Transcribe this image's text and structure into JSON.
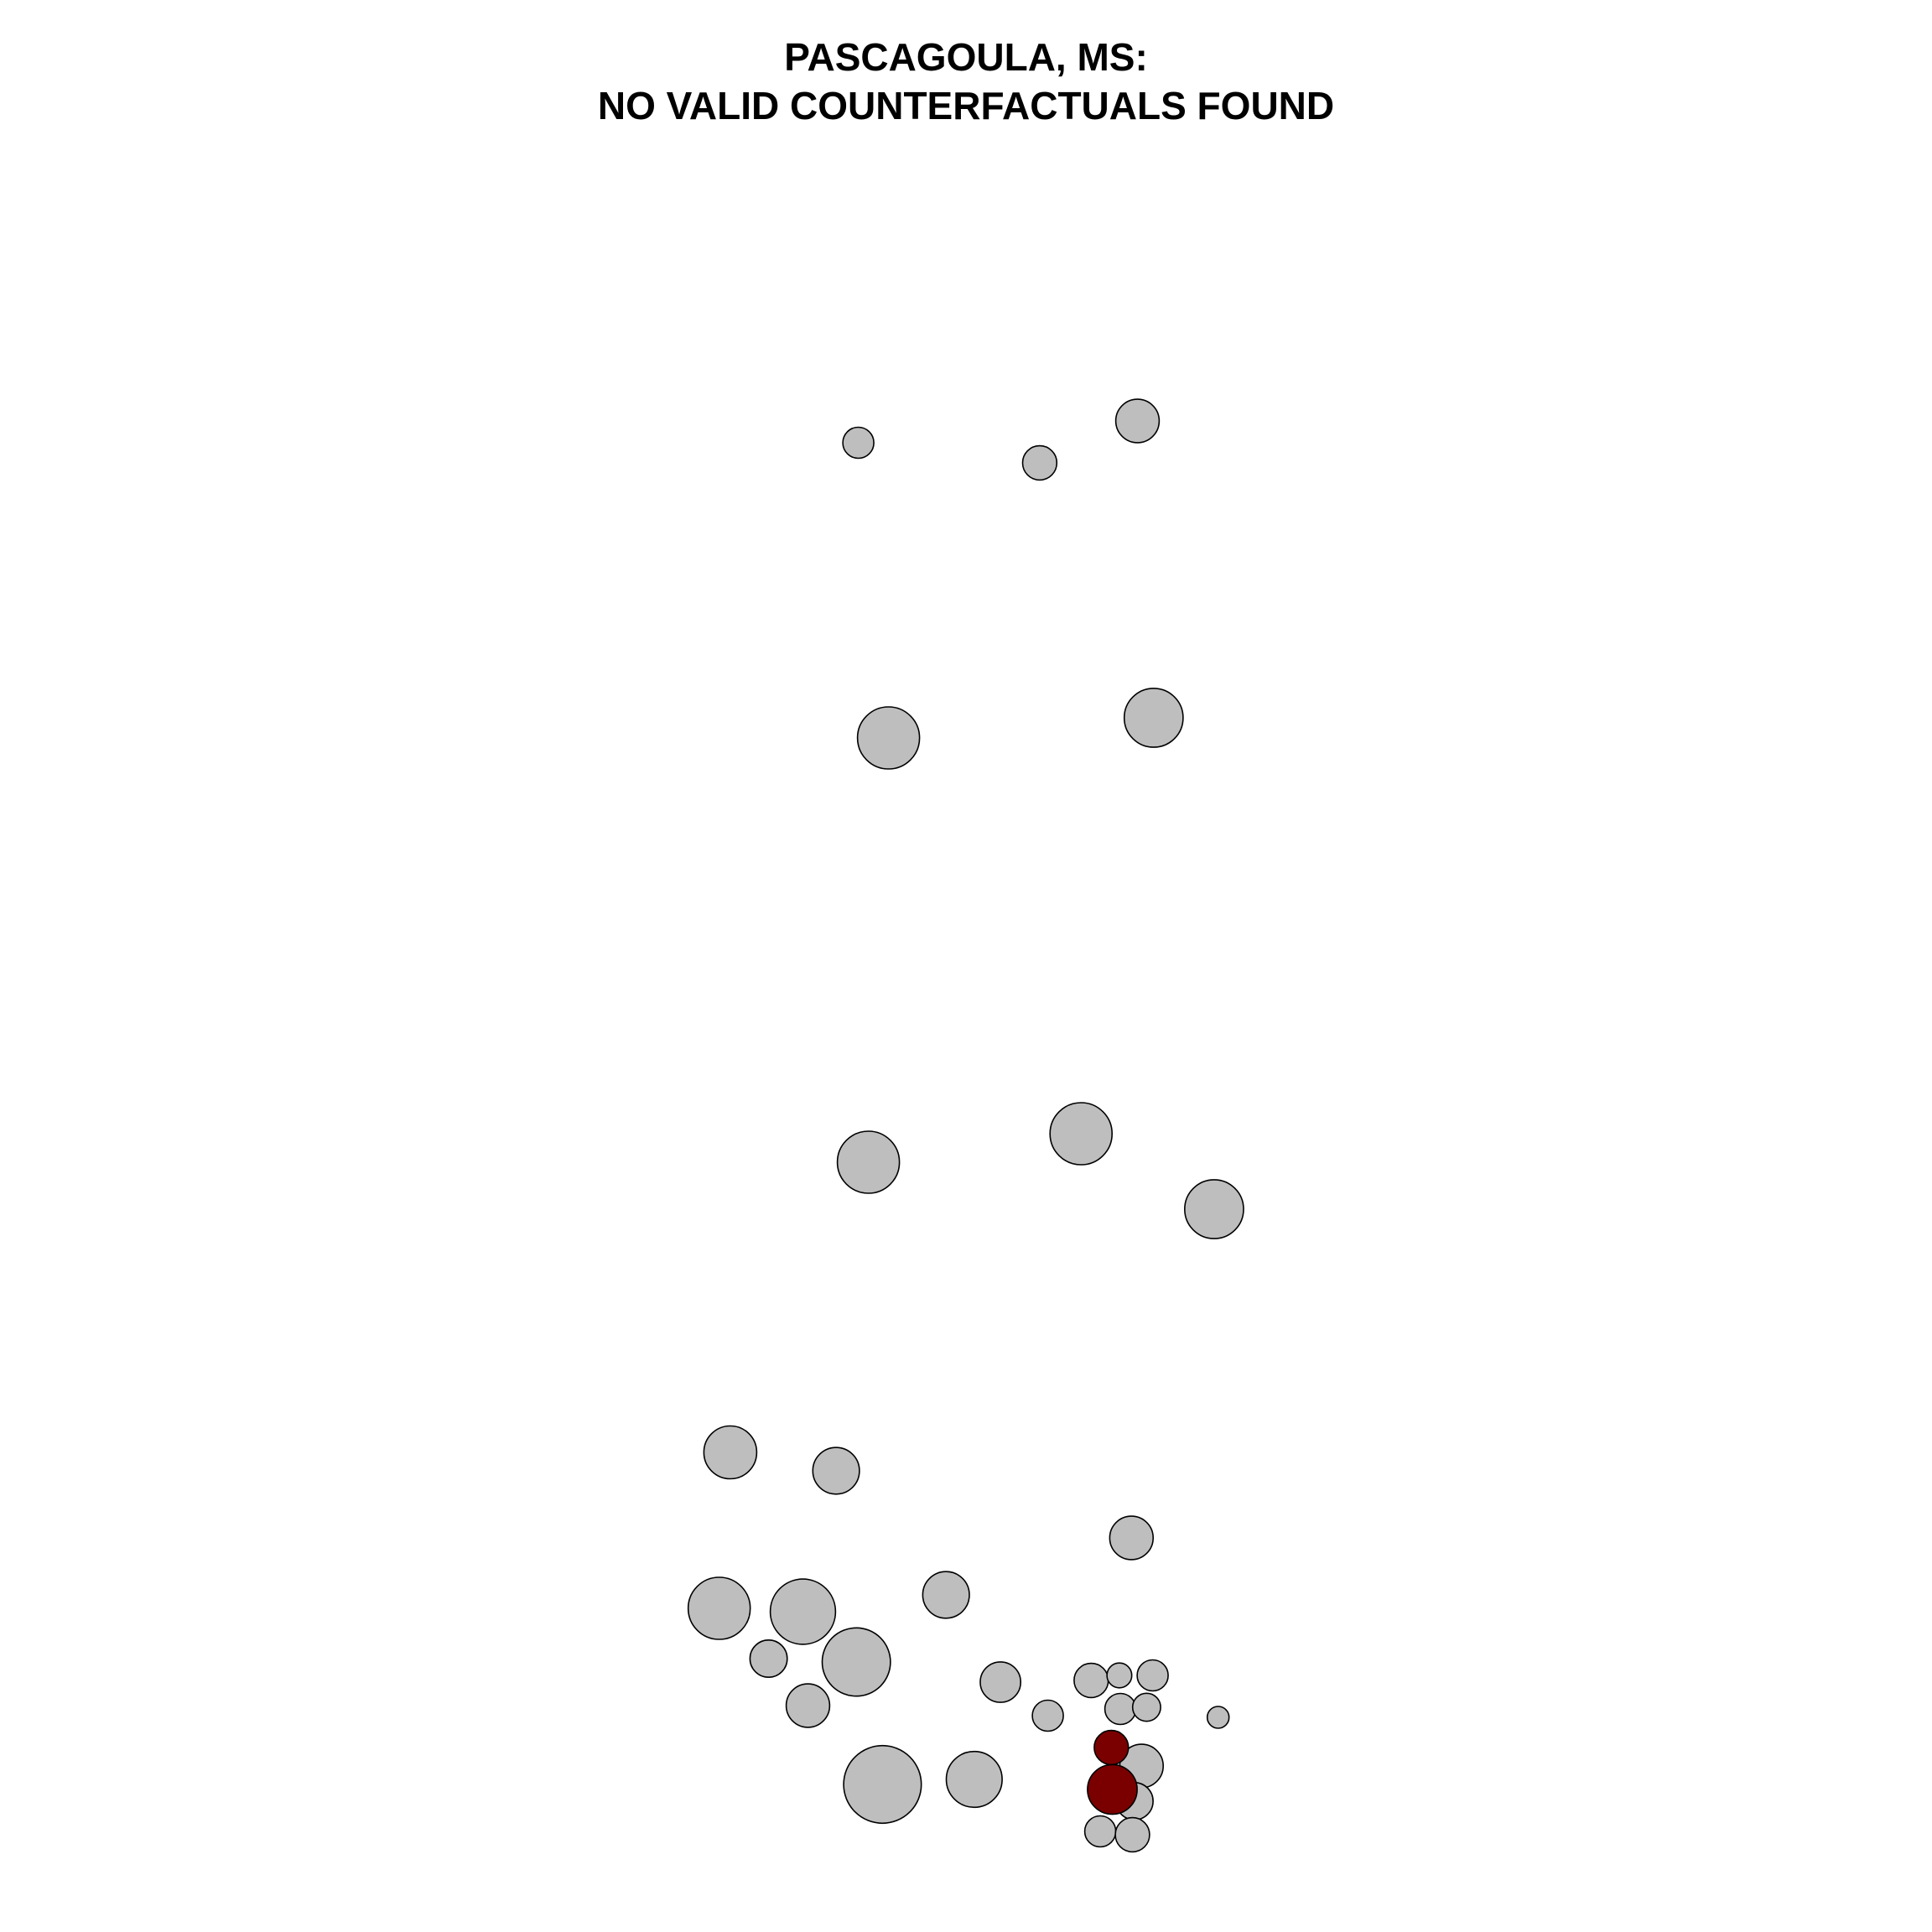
{
  "chart_data": {
    "type": "scatter",
    "title": "PASCAGOULA, MS:",
    "subtitle": "NO VALID COUNTERFACTUALS FOUND",
    "xlabel": "",
    "ylabel": "",
    "axes_visible": false,
    "grid": false,
    "legend": "none",
    "xlim": [
      0,
      1000
    ],
    "ylim": [
      0,
      1000
    ],
    "colors": {
      "default": "#bebebe",
      "highlight": "#7a0000",
      "stroke": "#000000"
    },
    "points": [
      {
        "x": 394,
        "y": 861,
        "size": 10,
        "group": "default"
      },
      {
        "x": 574,
        "y": 849,
        "size": 11,
        "group": "default"
      },
      {
        "x": 671,
        "y": 874,
        "size": 14,
        "group": "default"
      },
      {
        "x": 424,
        "y": 685,
        "size": 20,
        "group": "default"
      },
      {
        "x": 687,
        "y": 697,
        "size": 19,
        "group": "default"
      },
      {
        "x": 404,
        "y": 432,
        "size": 20,
        "group": "default"
      },
      {
        "x": 615,
        "y": 449,
        "size": 20,
        "group": "default"
      },
      {
        "x": 747,
        "y": 404,
        "size": 19,
        "group": "default"
      },
      {
        "x": 267,
        "y": 259,
        "size": 17,
        "group": "default"
      },
      {
        "x": 372,
        "y": 248,
        "size": 15,
        "group": "default"
      },
      {
        "x": 665,
        "y": 208,
        "size": 14,
        "group": "default"
      },
      {
        "x": 256,
        "y": 166,
        "size": 20,
        "group": "default"
      },
      {
        "x": 339,
        "y": 164,
        "size": 21,
        "group": "default"
      },
      {
        "x": 481,
        "y": 174,
        "size": 15,
        "group": "default"
      },
      {
        "x": 392,
        "y": 134,
        "size": 22,
        "group": "default"
      },
      {
        "x": 305,
        "y": 136,
        "size": 12,
        "group": "default"
      },
      {
        "x": 344,
        "y": 108,
        "size": 14,
        "group": "default"
      },
      {
        "x": 535,
        "y": 122,
        "size": 13,
        "group": "default"
      },
      {
        "x": 582,
        "y": 102,
        "size": 10,
        "group": "default"
      },
      {
        "x": 625,
        "y": 123,
        "size": 11,
        "group": "default"
      },
      {
        "x": 653,
        "y": 126,
        "size": 8,
        "group": "default"
      },
      {
        "x": 686,
        "y": 126,
        "size": 10,
        "group": "default"
      },
      {
        "x": 654,
        "y": 106,
        "size": 10,
        "group": "default"
      },
      {
        "x": 680,
        "y": 107,
        "size": 9,
        "group": "default"
      },
      {
        "x": 751,
        "y": 101,
        "size": 7,
        "group": "default"
      },
      {
        "x": 418,
        "y": 61,
        "size": 25,
        "group": "default"
      },
      {
        "x": 509,
        "y": 64,
        "size": 18,
        "group": "default"
      },
      {
        "x": 675,
        "y": 72,
        "size": 14,
        "group": "default"
      },
      {
        "x": 668,
        "y": 51,
        "size": 12,
        "group": "default"
      },
      {
        "x": 634,
        "y": 33,
        "size": 10,
        "group": "default"
      },
      {
        "x": 666,
        "y": 31,
        "size": 11,
        "group": "default"
      },
      {
        "x": 645,
        "y": 83,
        "size": 11,
        "group": "highlight"
      },
      {
        "x": 646,
        "y": 58,
        "size": 16,
        "group": "highlight"
      }
    ]
  }
}
